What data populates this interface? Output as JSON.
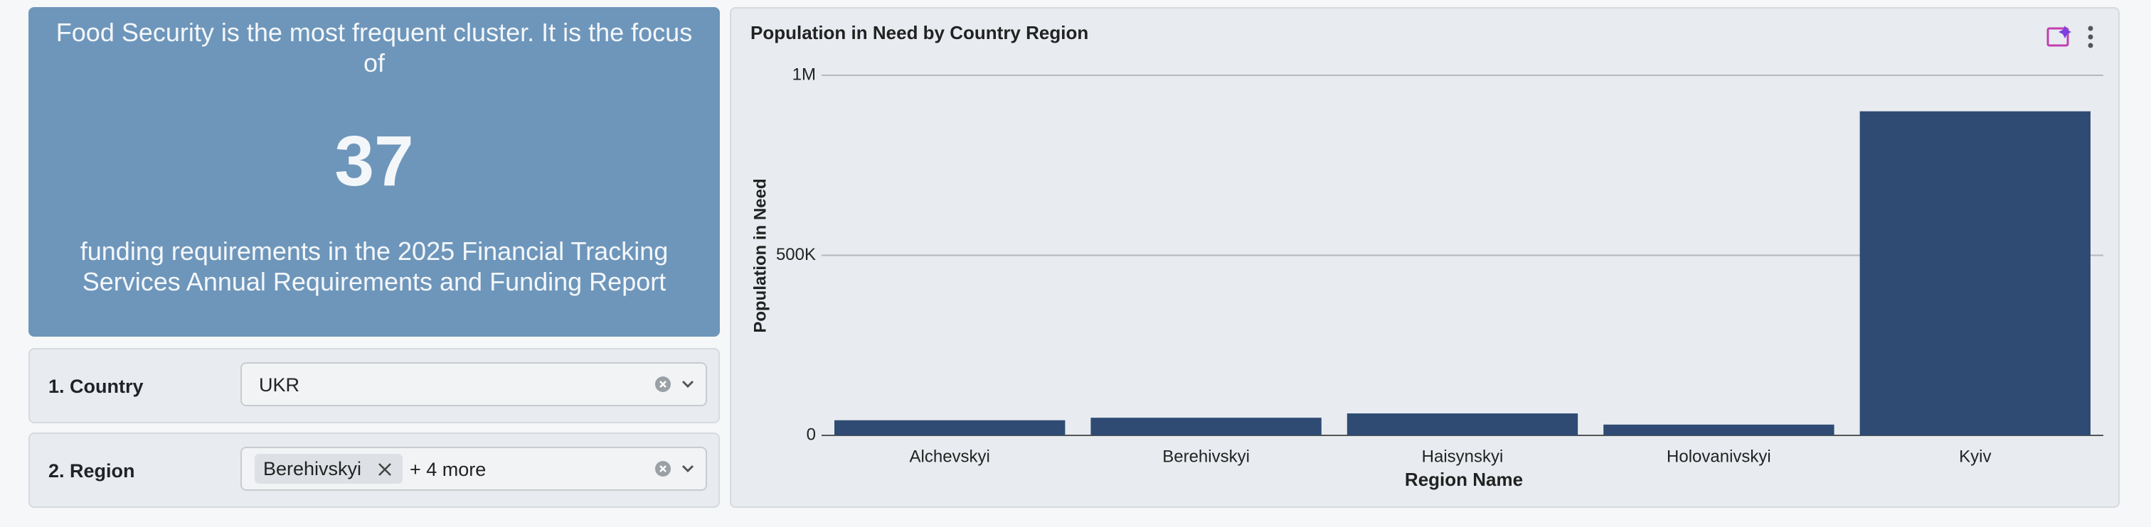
{
  "kpi": {
    "text_before": "Food Security is the most frequent cluster. It is the focus of",
    "value": "37",
    "text_after": "funding requirements in the 2025 Financial Tracking Services Annual Requirements and Funding Report"
  },
  "filters": [
    {
      "label": "1. Country",
      "value": "UKR"
    },
    {
      "label": "2. Region",
      "chip": "Berehivskyi",
      "more": "+ 4 more"
    }
  ],
  "chart_data": {
    "type": "bar",
    "title": "Population in Need by Country Region",
    "x_label": "Region Name",
    "y_label": "Population in Need",
    "categories": [
      "Alchevskyi",
      "Berehivskyi",
      "Haisynskyi",
      "Holovanivskyi",
      "Kyiv"
    ],
    "values": [
      42000,
      49000,
      61000,
      30000,
      900000
    ],
    "color": "#2f4b73",
    "ylim": [
      0,
      1000000
    ],
    "yticks": [
      0,
      {
        "value": 500000,
        "label": "500K"
      },
      {
        "value": 1000000,
        "label": "1M"
      }
    ],
    "grid": true
  }
}
